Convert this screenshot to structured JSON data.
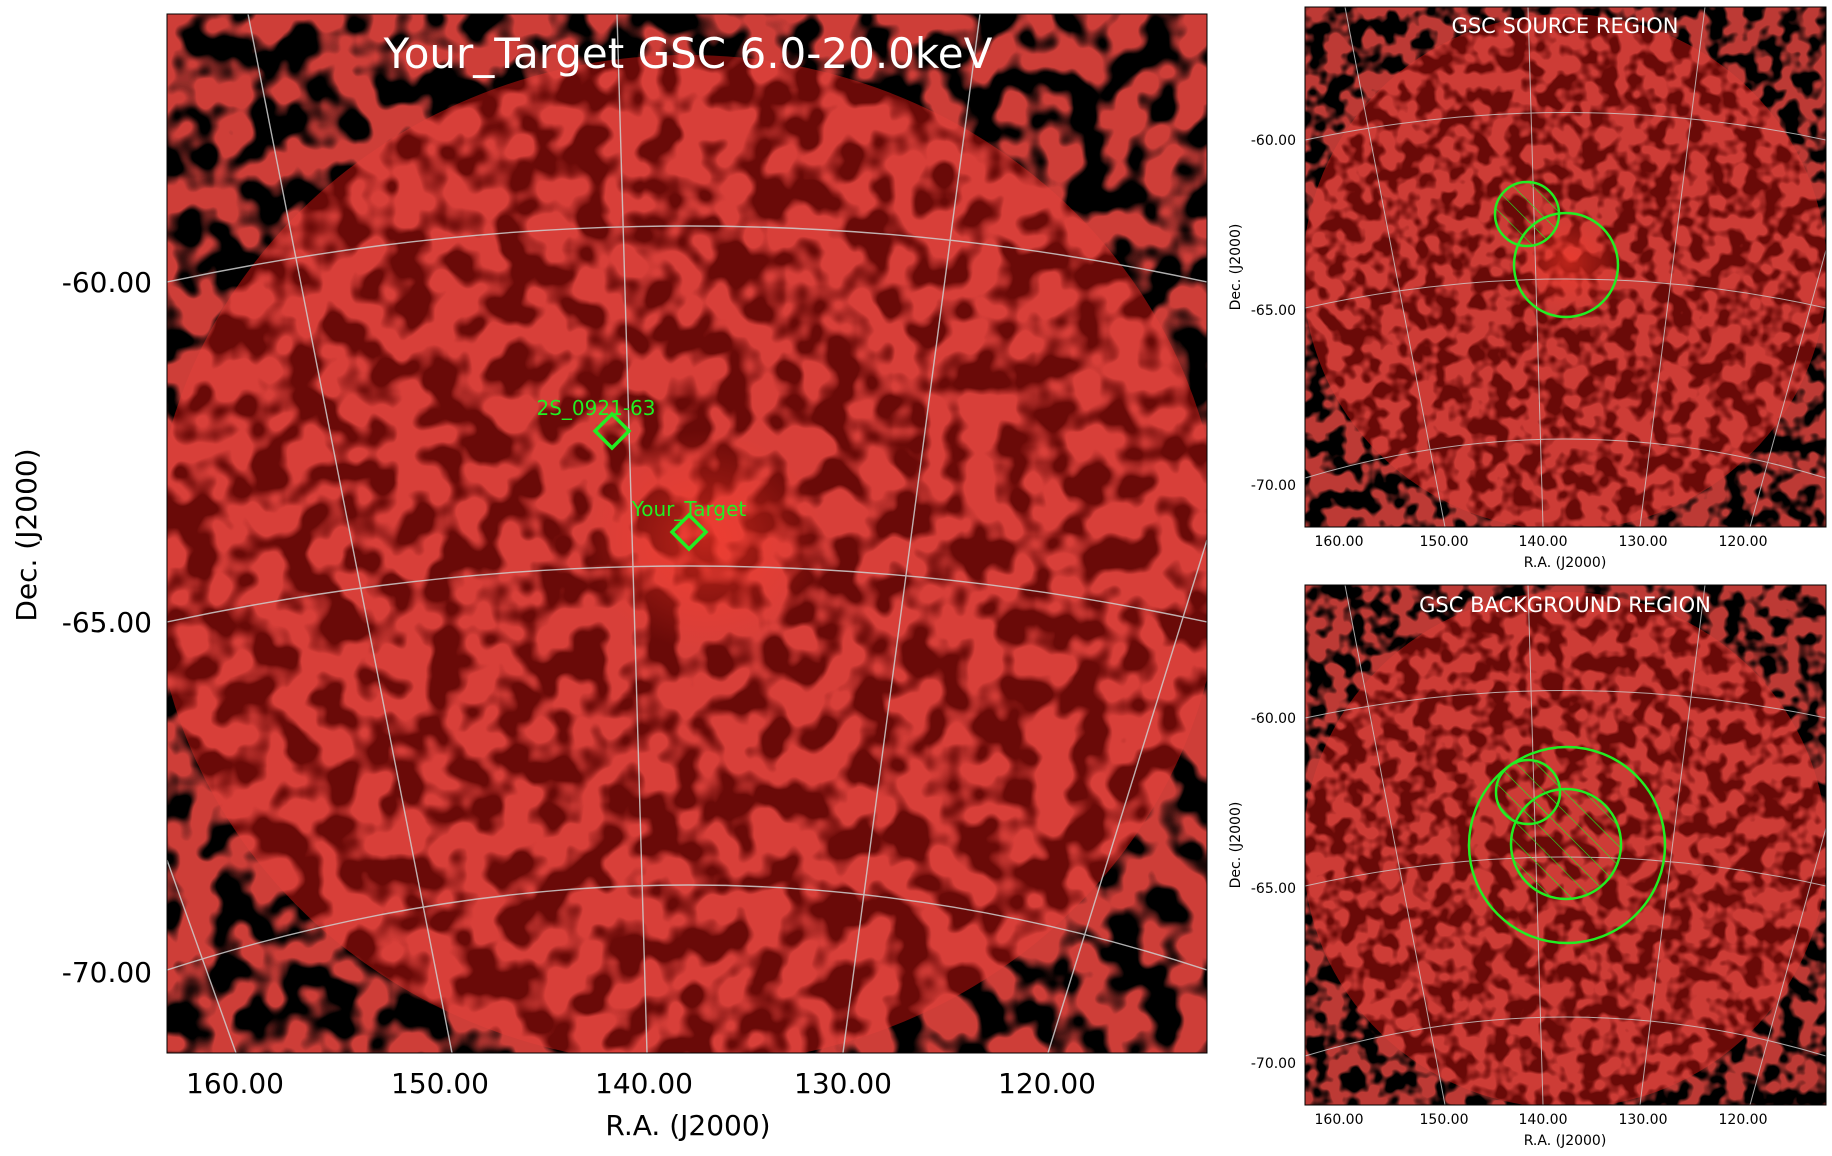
{
  "main_panel": {
    "title": "Your_Target GSC 6.0-20.0keV",
    "xlabel": "R.A. (J2000)",
    "ylabel": "Dec. (J2000)",
    "x_ticks": [
      "160.00",
      "150.00",
      "140.00",
      "130.00",
      "120.00"
    ],
    "y_ticks": [
      "-60.00",
      "-65.00",
      "-70.00"
    ],
    "sources": [
      {
        "label": "2S_0921-63"
      },
      {
        "label": "Your_Target"
      }
    ],
    "marker_color": "#22ee22",
    "image_color": "#c41010"
  },
  "source_panel": {
    "title": "GSC SOURCE REGION",
    "xlabel": "R.A. (J2000)",
    "ylabel": "Dec. (J2000)",
    "x_ticks": [
      "160.00",
      "150.00",
      "140.00",
      "130.00",
      "120.00"
    ],
    "y_ticks": [
      "-60.00",
      "-65.00",
      "-70.00"
    ]
  },
  "background_panel": {
    "title": "GSC BACKGROUND REGION",
    "xlabel": "R.A. (J2000)",
    "ylabel": "Dec. (J2000)",
    "x_ticks": [
      "160.00",
      "150.00",
      "140.00",
      "130.00",
      "120.00"
    ],
    "y_ticks": [
      "-60.00",
      "-65.00",
      "-70.00"
    ]
  }
}
